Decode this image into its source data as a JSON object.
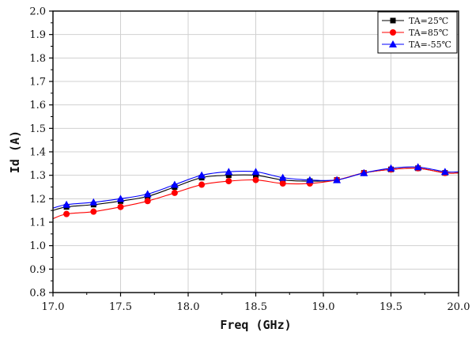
{
  "chart_data": {
    "type": "line",
    "title": "",
    "xlabel": "Freq (GHz)",
    "ylabel": "Id (A)",
    "xlim": [
      17.0,
      20.0
    ],
    "ylim": [
      0.8,
      2.0
    ],
    "xticks": [
      17.0,
      17.5,
      18.0,
      18.5,
      19.0,
      19.5,
      20.0
    ],
    "xtick_labels": [
      "17.0",
      "17.5",
      "18.0",
      "18.5",
      "19.0",
      "19.5",
      "20.0"
    ],
    "yticks": [
      0.8,
      0.9,
      1.0,
      1.1,
      1.2,
      1.3,
      1.4,
      1.5,
      1.6,
      1.7,
      1.8,
      1.9,
      2.0
    ],
    "ytick_labels": [
      "0.8",
      "0.9",
      "1.0",
      "1.1",
      "1.2",
      "1.3",
      "1.4",
      "1.5",
      "1.6",
      "1.7",
      "1.8",
      "1.9",
      "2.0"
    ],
    "grid": true,
    "legend_position": "top-right",
    "x": [
      17.1,
      17.3,
      17.5,
      17.7,
      17.9,
      18.1,
      18.3,
      18.5,
      18.7,
      18.9,
      19.1,
      19.3,
      19.5,
      19.7,
      19.9
    ],
    "series": [
      {
        "name": "TA=25℃",
        "color": "#000000",
        "marker": "square",
        "start": [
          17.0,
          1.15
        ],
        "end": [
          20.0,
          1.31
        ],
        "values": [
          1.165,
          1.175,
          1.19,
          1.21,
          1.25,
          1.29,
          1.3,
          1.3,
          1.28,
          1.275,
          1.28,
          1.31,
          1.325,
          1.33,
          1.31
        ]
      },
      {
        "name": "TA=85℃",
        "color": "#ff0000",
        "marker": "circle",
        "start": [
          17.0,
          1.115
        ],
        "end": [
          20.0,
          1.31
        ],
        "values": [
          1.135,
          1.145,
          1.165,
          1.19,
          1.225,
          1.26,
          1.275,
          1.28,
          1.265,
          1.265,
          1.28,
          1.31,
          1.325,
          1.33,
          1.31
        ]
      },
      {
        "name": "TA=-55℃",
        "color": "#0000ff",
        "marker": "triangle",
        "start": [
          17.0,
          1.16
        ],
        "end": [
          20.0,
          1.315
        ],
        "values": [
          1.175,
          1.185,
          1.2,
          1.22,
          1.26,
          1.3,
          1.315,
          1.315,
          1.29,
          1.28,
          1.28,
          1.31,
          1.33,
          1.335,
          1.315
        ]
      }
    ]
  }
}
